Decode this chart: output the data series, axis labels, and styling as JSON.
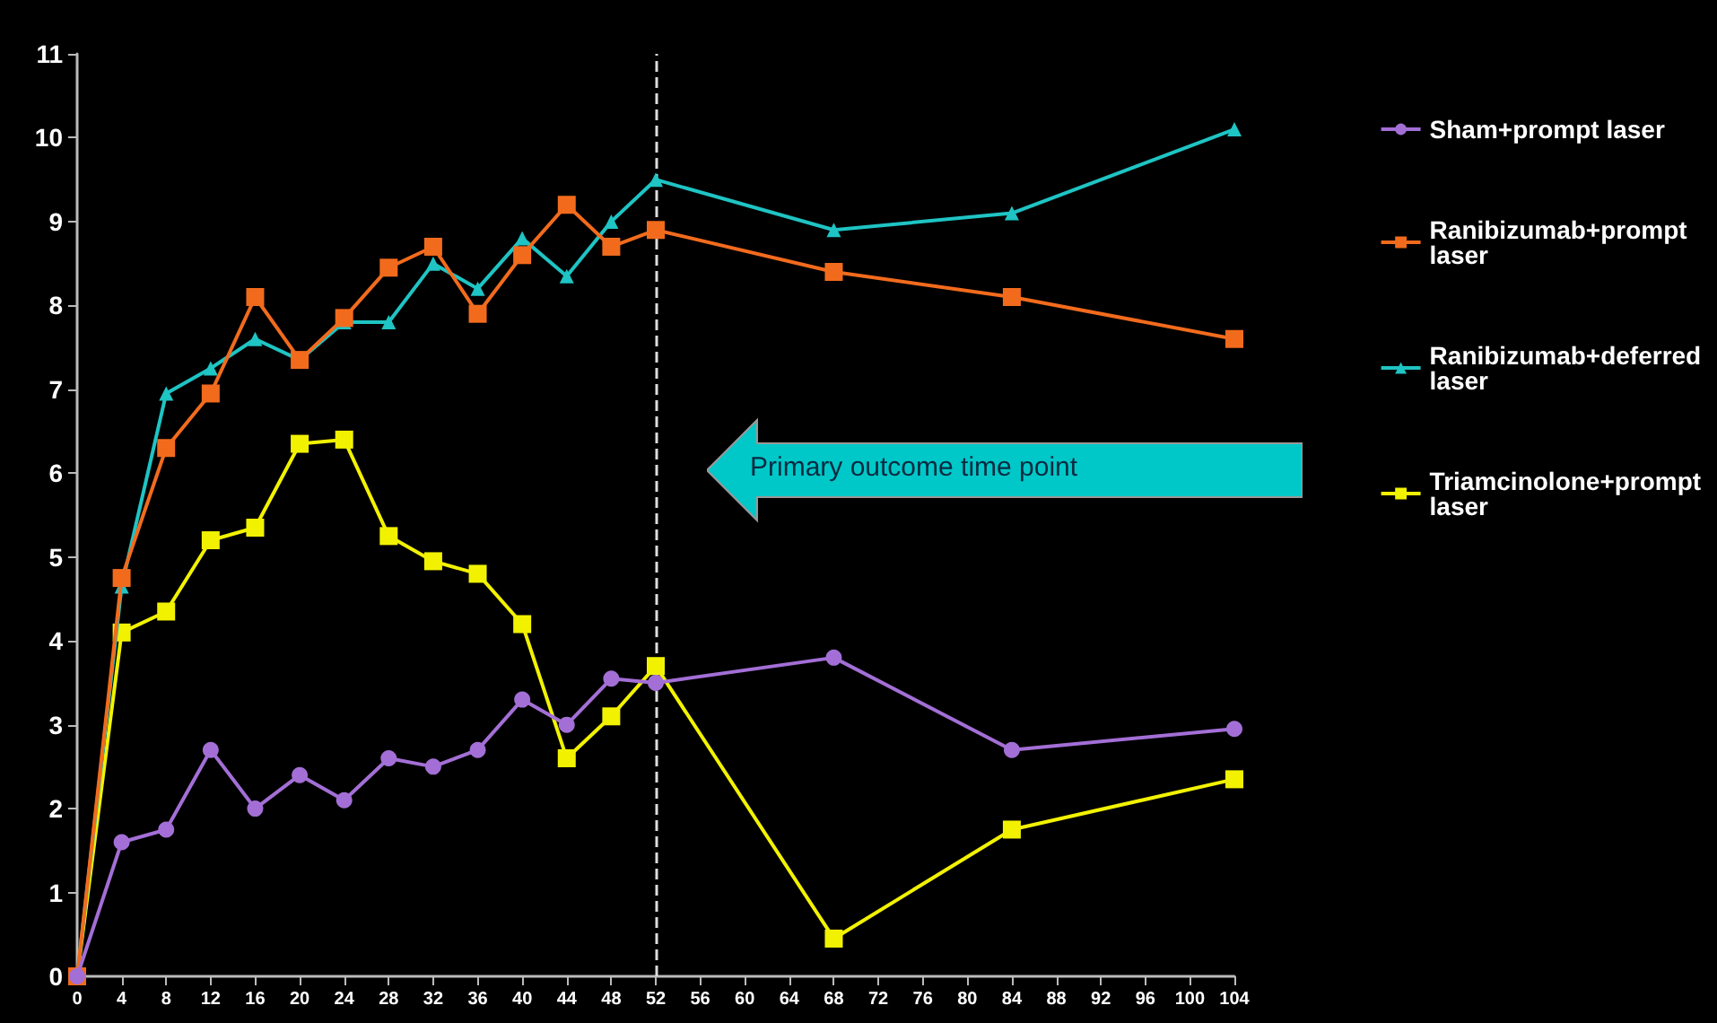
{
  "chart_data": {
    "type": "line",
    "x": [
      0,
      4,
      8,
      12,
      16,
      20,
      24,
      28,
      32,
      36,
      40,
      44,
      48,
      52,
      68,
      84,
      104
    ],
    "series": [
      {
        "name": "Sham+prompt laser",
        "color": "#a36fd6",
        "marker": "circle",
        "values": [
          0,
          1.6,
          1.75,
          2.7,
          2.0,
          2.4,
          2.1,
          2.6,
          2.5,
          2.7,
          3.3,
          3.0,
          3.55,
          3.5,
          3.8,
          2.7,
          2.95
        ]
      },
      {
        "name": "Ranibizumab+prompt laser",
        "color": "#f26b1d",
        "marker": "square",
        "values": [
          0,
          4.75,
          6.3,
          6.95,
          8.1,
          7.35,
          7.85,
          8.45,
          8.7,
          7.9,
          8.6,
          9.2,
          8.7,
          8.9,
          8.4,
          8.1,
          7.6
        ]
      },
      {
        "name": "Ranibizumab+deferred laser",
        "color": "#1fc4c4",
        "marker": "triangle",
        "values": [
          0,
          4.65,
          6.95,
          7.25,
          7.6,
          7.35,
          7.8,
          7.8,
          8.5,
          8.2,
          8.8,
          8.35,
          9.0,
          9.5,
          8.9,
          9.1,
          10.1
        ]
      },
      {
        "name": "Triamcinolone+prompt laser",
        "color": "#f2f200",
        "marker": "square",
        "values": [
          0,
          4.1,
          4.35,
          5.2,
          5.35,
          6.35,
          6.4,
          5.25,
          4.95,
          4.8,
          4.2,
          2.6,
          3.1,
          3.7,
          0.45,
          1.75,
          2.35
        ]
      }
    ],
    "xlim": [
      0,
      104
    ],
    "xticks": [
      0,
      4,
      8,
      12,
      16,
      20,
      24,
      28,
      32,
      36,
      40,
      44,
      48,
      52,
      56,
      60,
      64,
      68,
      72,
      76,
      80,
      84,
      88,
      92,
      96,
      100,
      104
    ],
    "ylim": [
      0,
      11
    ],
    "yticks": [
      0,
      1,
      2,
      3,
      4,
      5,
      6,
      7,
      8,
      9,
      10,
      11
    ],
    "grid": false,
    "legend": "right",
    "ref_lines": [
      {
        "axis": "x",
        "value": 52,
        "color": "#dddddd",
        "line_style": "dashed"
      }
    ],
    "annotations": [
      "Primary outcome time point"
    ]
  }
}
